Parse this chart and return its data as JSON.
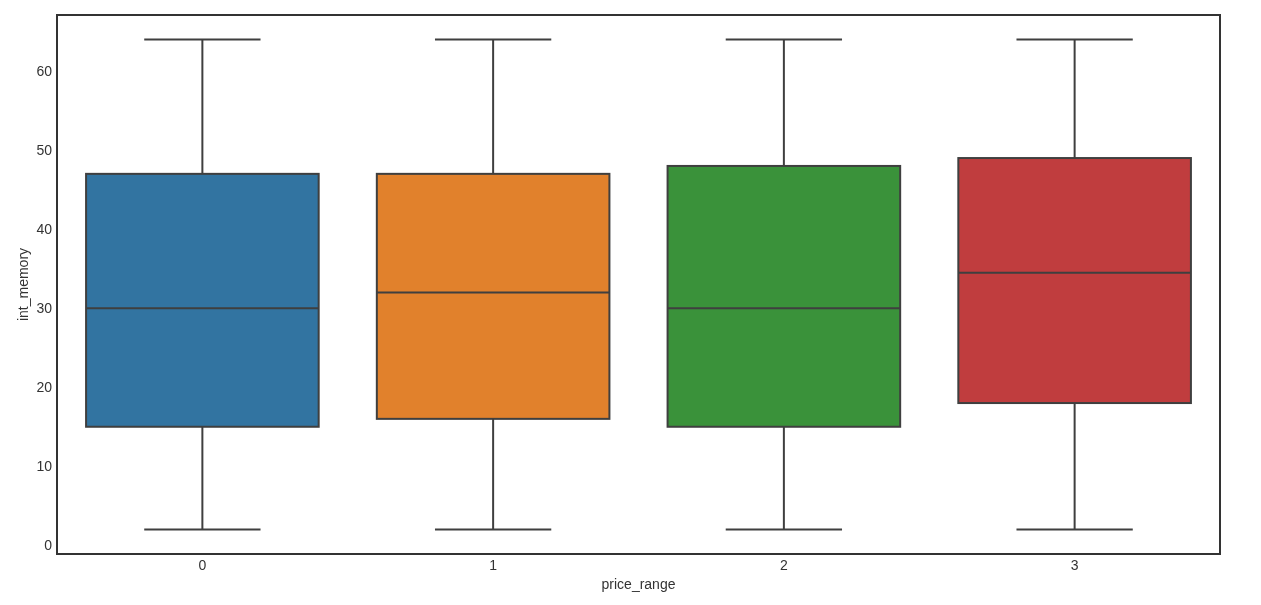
{
  "chart_data": {
    "type": "box",
    "xlabel": "price_range",
    "ylabel": "int_memory",
    "categories": [
      "0",
      "1",
      "2",
      "3"
    ],
    "colors": [
      "#3274a1",
      "#e1812c",
      "#3a923a",
      "#c03d3e"
    ],
    "boxes": [
      {
        "low": 2,
        "q1": 15,
        "median": 30,
        "q3": 47,
        "high": 64
      },
      {
        "low": 2,
        "q1": 16,
        "median": 32,
        "q3": 47,
        "high": 64
      },
      {
        "low": 2,
        "q1": 15,
        "median": 30,
        "q3": 48,
        "high": 64
      },
      {
        "low": 2,
        "q1": 18,
        "median": 34.5,
        "q3": 49,
        "high": 64
      }
    ],
    "ylim": [
      -1.1,
      67.1
    ],
    "yticks": [
      0,
      10,
      20,
      30,
      40,
      50,
      60
    ]
  }
}
